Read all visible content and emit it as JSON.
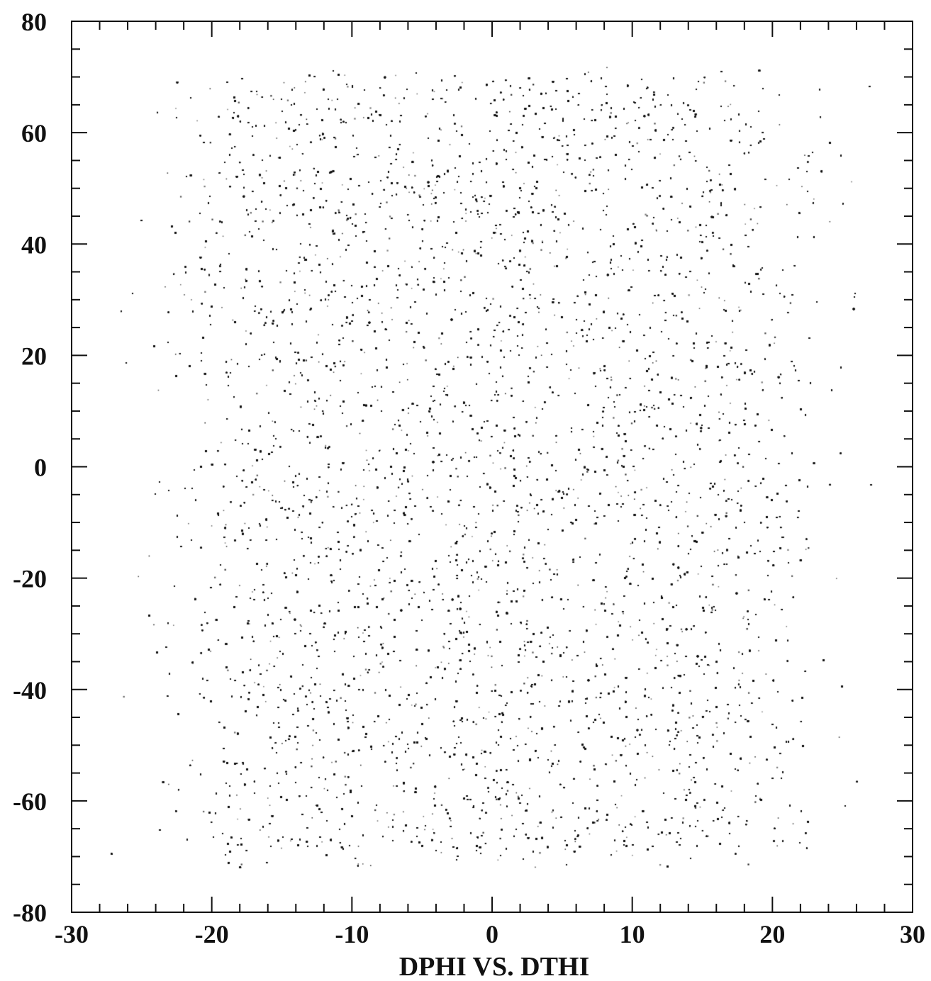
{
  "chart_data": {
    "type": "scatter",
    "title": "",
    "xlabel": "DPHI VS. DTHI",
    "ylabel": "",
    "xlim": [
      -30,
      30
    ],
    "ylim": [
      -80,
      80
    ],
    "x_ticks": [
      "-30",
      "-20",
      "-10",
      "0",
      "10",
      "20",
      "30"
    ],
    "y_ticks": [
      "80",
      "60",
      "40",
      "20",
      "0",
      "-20",
      "-40",
      "-60",
      "-80"
    ],
    "grid": false,
    "legend": "none",
    "point_color": "#111111",
    "distribution": {
      "description": "dense uniform-like cloud of events",
      "x_range": [
        -28,
        28
      ],
      "y_range": [
        -72,
        72
      ],
      "core_x_range": [
        -20,
        20
      ],
      "core_y_range": [
        -70,
        70
      ],
      "approx_point_count": 60000
    }
  }
}
